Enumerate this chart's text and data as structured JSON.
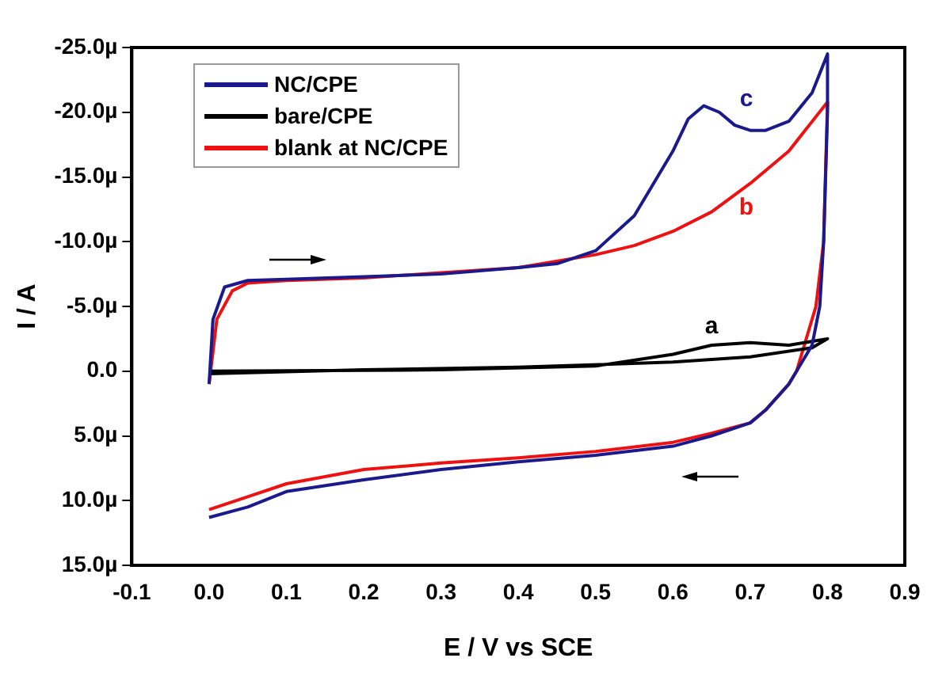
{
  "chart_data": {
    "type": "line",
    "xlabel": "E / V vs SCE",
    "ylabel": "I / A",
    "xlim": [
      -0.1,
      0.9
    ],
    "xticks": [
      -0.1,
      {
        "value": 0,
        "label": "0.0"
      },
      0.1,
      0.2,
      0.3,
      0.4,
      0.5,
      0.6,
      0.7,
      0.8,
      0.9
    ],
    "ylim": [
      15,
      -25
    ],
    "yticks": [
      {
        "value": -25,
        "label": "-25.0µ"
      },
      {
        "value": -20,
        "label": "-20.0µ"
      },
      {
        "value": -15,
        "label": "-15.0µ"
      },
      {
        "value": -10,
        "label": "-10.0µ"
      },
      {
        "value": -5,
        "label": "-5.0µ"
      },
      {
        "value": 0,
        "label": "0.0"
      },
      {
        "value": 5,
        "label": "5.0µ"
      },
      {
        "value": 10,
        "label": "10.0µ"
      },
      {
        "value": 15,
        "label": "15.0µ"
      }
    ],
    "grid": false,
    "legend": "top left",
    "marker": "none",
    "line_style": "solid",
    "series": [
      {
        "name": "NC/CPE",
        "color": "#1a1a8c",
        "x": [
          0,
          0.005,
          0.02,
          0.05,
          0.1,
          0.2,
          0.3,
          0.4,
          0.45,
          0.5,
          0.55,
          0.6,
          0.62,
          0.64,
          0.66,
          0.68,
          0.7,
          0.72,
          0.75,
          0.78,
          0.8,
          0.8,
          0.795,
          0.79,
          0.78,
          0.76,
          0.75,
          0.72,
          0.7,
          0.65,
          0.6,
          0.5,
          0.4,
          0.3,
          0.2,
          0.1,
          0.05,
          0
        ],
        "values": [
          1,
          -4,
          -6.5,
          -7,
          -7.1,
          -7.3,
          -7.5,
          -8,
          -8.3,
          -9.3,
          -12,
          -17,
          -19.5,
          -20.5,
          -20,
          -19,
          -18.6,
          -18.6,
          -19.3,
          -21.5,
          -24.5,
          -20,
          -10,
          -5,
          -2,
          0,
          1,
          3,
          4,
          5,
          5.8,
          6.5,
          7,
          7.6,
          8.4,
          9.3,
          10.5,
          11.3
        ]
      },
      {
        "name": "bare/CPE",
        "color": "#000000",
        "x": [
          0,
          0.3,
          0.5,
          0.6,
          0.65,
          0.7,
          0.75,
          0.8,
          0.78,
          0.7,
          0.6,
          0.4,
          0.2,
          0
        ],
        "values": [
          0,
          -0.1,
          -0.4,
          -1.3,
          -2,
          -2.2,
          -2,
          -2.5,
          -1.8,
          -1.1,
          -0.7,
          -0.3,
          -0.1,
          0.2
        ]
      },
      {
        "name": "blank at NC/CPE",
        "color": "#ee1111",
        "x": [
          0,
          0.01,
          0.03,
          0.05,
          0.1,
          0.2,
          0.3,
          0.4,
          0.5,
          0.55,
          0.6,
          0.65,
          0.7,
          0.75,
          0.8,
          0.795,
          0.785,
          0.77,
          0.76,
          0.75,
          0.72,
          0.7,
          0.65,
          0.6,
          0.5,
          0.4,
          0.3,
          0.2,
          0.1,
          0.05,
          0
        ],
        "values": [
          1,
          -4,
          -6.2,
          -6.8,
          -7,
          -7.2,
          -7.6,
          -8,
          -9,
          -9.7,
          -10.8,
          -12.3,
          -14.5,
          -17,
          -20.8,
          -10,
          -5,
          -2,
          0,
          1,
          3,
          4,
          4.8,
          5.5,
          6.2,
          6.7,
          7.1,
          7.6,
          8.7,
          9.7,
          10.7
        ]
      }
    ],
    "annotations": [
      "c",
      "a",
      "b"
    ]
  }
}
